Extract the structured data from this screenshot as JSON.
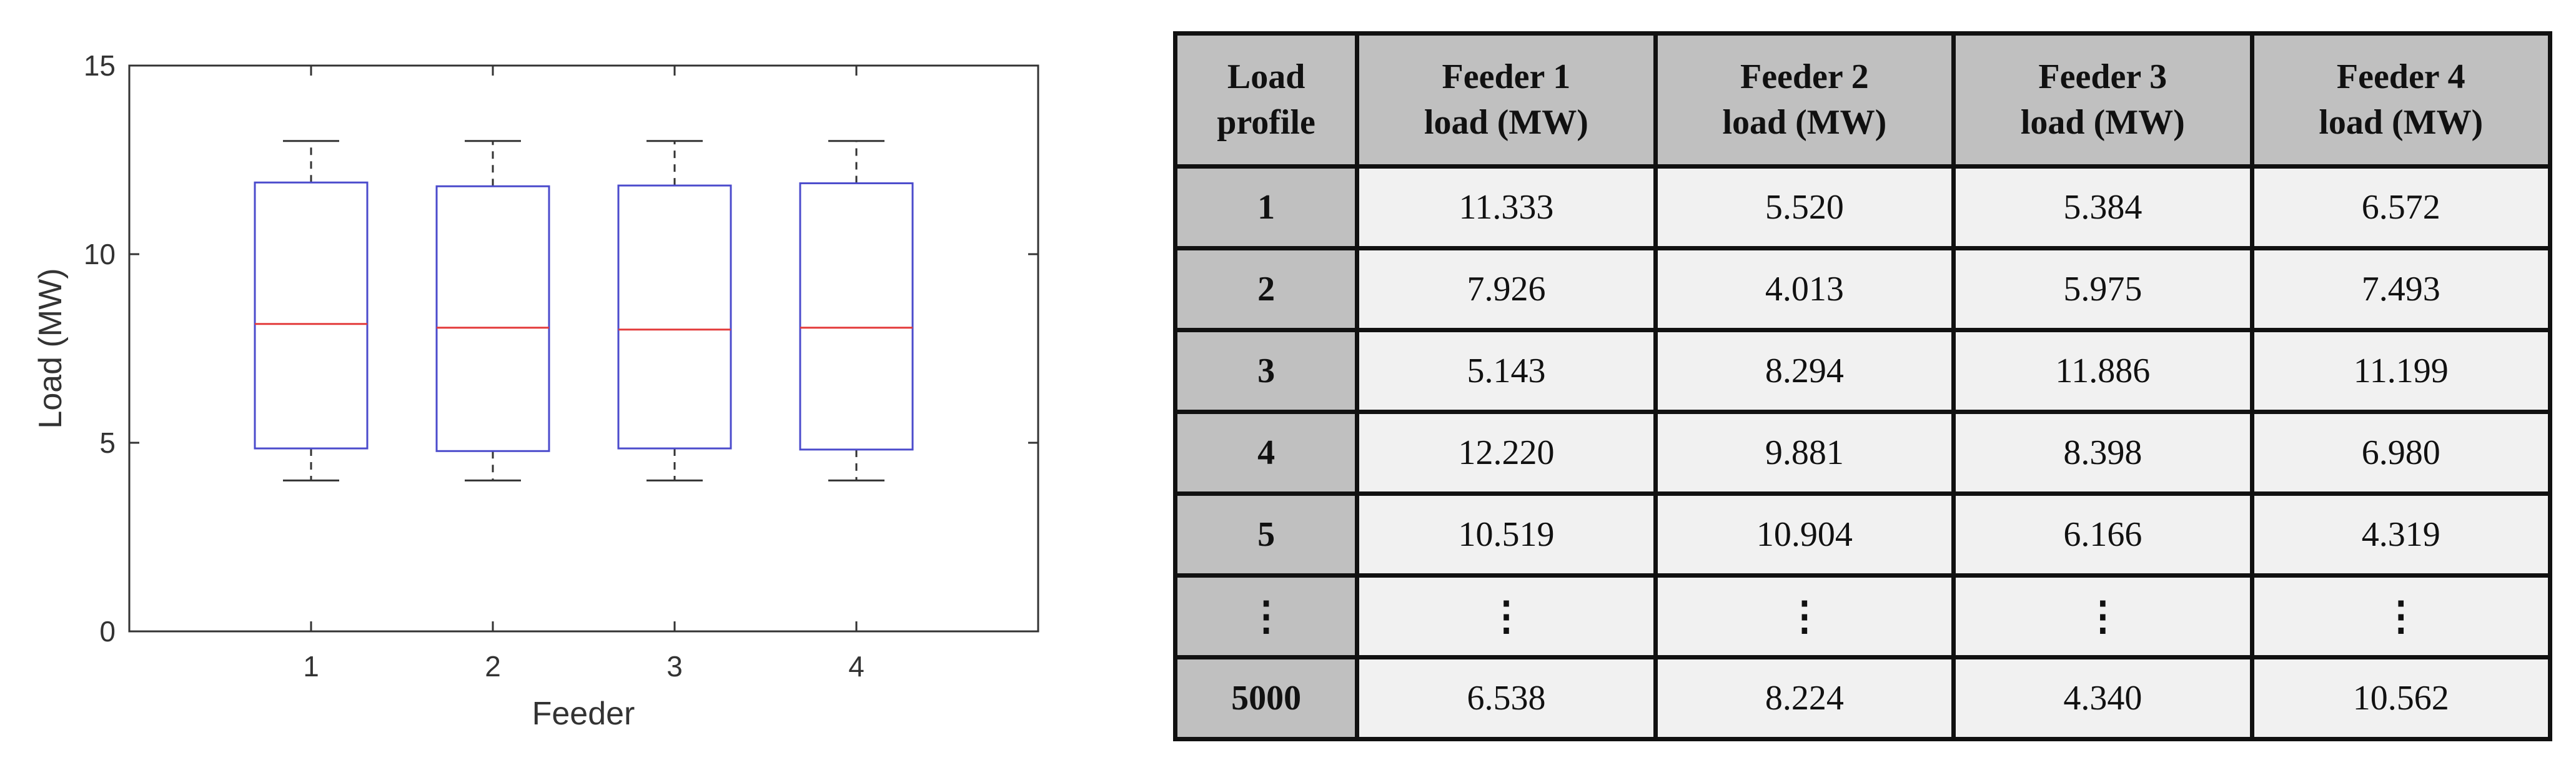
{
  "chart_data": [
    {
      "type": "boxplot",
      "xlabel": "Feeder",
      "ylabel": "Load (MW)",
      "ylim": [
        0,
        15
      ],
      "yticks": [
        0,
        5,
        10,
        15
      ],
      "categories": [
        "1",
        "2",
        "3",
        "4"
      ],
      "boxes": [
        {
          "whisker_low": 4.0,
          "q1": 4.85,
          "median": 8.15,
          "q3": 11.9,
          "whisker_high": 13.0
        },
        {
          "whisker_low": 4.0,
          "q1": 4.78,
          "median": 8.05,
          "q3": 11.8,
          "whisker_high": 13.0
        },
        {
          "whisker_low": 4.0,
          "q1": 4.85,
          "median": 8.0,
          "q3": 11.82,
          "whisker_high": 13.0
        },
        {
          "whisker_low": 4.0,
          "q1": 4.82,
          "median": 8.05,
          "q3": 11.88,
          "whisker_high": 13.0
        }
      ],
      "grid": false,
      "box_color": "#4b4bcc",
      "median_color": "#e33b3b",
      "whisker_color": "#333333"
    },
    {
      "type": "table",
      "header": [
        [
          "Load",
          "profile"
        ],
        [
          "Feeder 1",
          "load (MW)"
        ],
        [
          "Feeder 2",
          "load (MW)"
        ],
        [
          "Feeder 3",
          "load (MW)"
        ],
        [
          "Feeder 4",
          "load (MW)"
        ]
      ],
      "rows": [
        [
          "1",
          "11.333",
          "5.520",
          "5.384",
          "6.572"
        ],
        [
          "2",
          "7.926",
          "4.013",
          "5.975",
          "7.493"
        ],
        [
          "3",
          "5.143",
          "8.294",
          "11.886",
          "11.199"
        ],
        [
          "4",
          "12.220",
          "9.881",
          "8.398",
          "6.980"
        ],
        [
          "5",
          "10.519",
          "10.904",
          "6.166",
          "4.319"
        ],
        [
          "⋮",
          "⋮",
          "⋮",
          "⋮",
          "⋮"
        ],
        [
          "5000",
          "6.538",
          "8.224",
          "4.340",
          "10.562"
        ]
      ]
    }
  ]
}
